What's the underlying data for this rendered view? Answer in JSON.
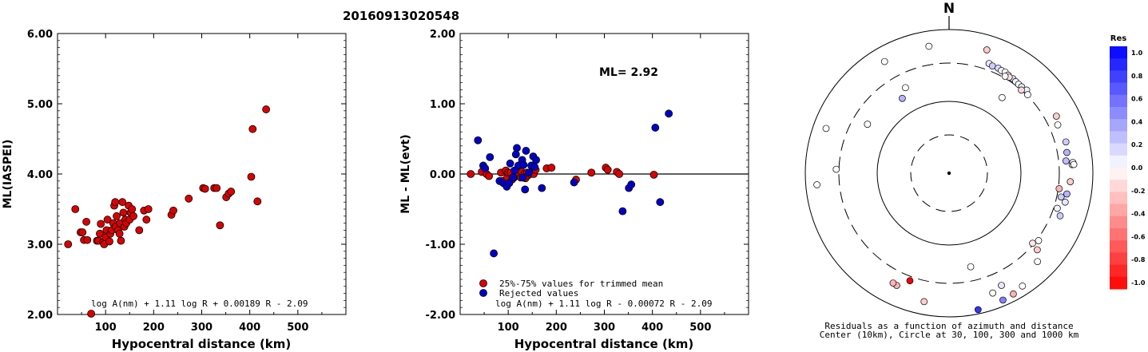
{
  "page_title": "20160913020548",
  "chart_data": [
    {
      "type": "scatter",
      "title": "",
      "xlabel": "Hypocentral distance (km)",
      "ylabel": "ML(IASPEI)",
      "xlim": [
        0,
        600
      ],
      "ylim": [
        2.0,
        6.0
      ],
      "x_ticks": [
        "100",
        "200",
        "300",
        "400",
        "500"
      ],
      "y_ticks": [
        "2.00",
        "3.00",
        "4.00",
        "5.00",
        "6.00"
      ],
      "formula": "log A(nm) + 1.11 log R + 0.00189 R - 2.09",
      "series": [
        {
          "color": "#dd0000",
          "points": [
            [
              22,
              3.0
            ],
            [
              37,
              3.5
            ],
            [
              48,
              3.17
            ],
            [
              52,
              3.17
            ],
            [
              55,
              3.06
            ],
            [
              60,
              3.32
            ],
            [
              62,
              3.06
            ],
            [
              70,
              1.97
            ],
            [
              82,
              3.05
            ],
            [
              85,
              3.05
            ],
            [
              88,
              3.15
            ],
            [
              90,
              3.29
            ],
            [
              95,
              3.03
            ],
            [
              97,
              3.0
            ],
            [
              100,
              3.1
            ],
            [
              102,
              3.2
            ],
            [
              104,
              3.35
            ],
            [
              108,
              3.04
            ],
            [
              110,
              3.15
            ],
            [
              113,
              3.2
            ],
            [
              116,
              3.3
            ],
            [
              118,
              3.55
            ],
            [
              120,
              3.6
            ],
            [
              121,
              3.25
            ],
            [
              123,
              3.4
            ],
            [
              126,
              3.2
            ],
            [
              129,
              3.15
            ],
            [
              130,
              3.3
            ],
            [
              132,
              3.05
            ],
            [
              135,
              3.6
            ],
            [
              137,
              3.45
            ],
            [
              139,
              3.25
            ],
            [
              141,
              3.35
            ],
            [
              143,
              3.3
            ],
            [
              148,
              3.55
            ],
            [
              150,
              3.35
            ],
            [
              152,
              3.45
            ],
            [
              155,
              3.5
            ],
            [
              158,
              3.4
            ],
            [
              170,
              3.2
            ],
            [
              180,
              3.48
            ],
            [
              185,
              3.35
            ],
            [
              189,
              3.5
            ],
            [
              237,
              3.42
            ],
            [
              241,
              3.48
            ],
            [
              273,
              3.65
            ],
            [
              303,
              3.8
            ],
            [
              307,
              3.79
            ],
            [
              326,
              3.8
            ],
            [
              331,
              3.8
            ],
            [
              338,
              3.27
            ],
            [
              351,
              3.67
            ],
            [
              356,
              3.72
            ],
            [
              361,
              3.75
            ],
            [
              403,
              3.96
            ],
            [
              406,
              4.64
            ],
            [
              416,
              3.61
            ],
            [
              434,
              4.92
            ]
          ]
        }
      ]
    },
    {
      "type": "scatter",
      "title": "",
      "xlabel": "Hypocentral distance (km)",
      "ylabel": "ML - ML(evt)",
      "xlim": [
        0,
        600
      ],
      "ylim": [
        -2.0,
        2.0
      ],
      "x_ticks": [
        "100",
        "200",
        "300",
        "400",
        "500"
      ],
      "y_ticks": [
        "-2.00",
        "-1.00",
        "0.00",
        "1.00",
        "2.00"
      ],
      "annotation": "ML= 2.92",
      "formula": "log A(nm) + 1.11 log R - 0.00072 R - 2.09",
      "series": [
        {
          "name": "25%-75% values for trimmed mean",
          "color": "#dd0000",
          "points": [
            [
              22,
              0.0
            ],
            [
              45,
              0.03
            ],
            [
              55,
              0.0
            ],
            [
              60,
              -0.03
            ],
            [
              85,
              0.02
            ],
            [
              88,
              -0.1
            ],
            [
              95,
              0.05
            ],
            [
              98,
              -0.05
            ],
            [
              100,
              0.02
            ],
            [
              105,
              0.02
            ],
            [
              108,
              -0.08
            ],
            [
              112,
              -0.05
            ],
            [
              115,
              0.0
            ],
            [
              118,
              0.06
            ],
            [
              120,
              -0.02
            ],
            [
              123,
              0.0
            ],
            [
              126,
              -0.05
            ],
            [
              128,
              0.03
            ],
            [
              131,
              -0.05
            ],
            [
              134,
              0.0
            ],
            [
              136,
              -0.06
            ],
            [
              139,
              0.02
            ],
            [
              141,
              -0.02
            ],
            [
              146,
              0.0
            ],
            [
              150,
              0.05
            ],
            [
              153,
              0.0
            ],
            [
              157,
              0.06
            ],
            [
              180,
              0.08
            ],
            [
              190,
              0.09
            ],
            [
              241,
              -0.08
            ],
            [
              273,
              0.02
            ],
            [
              303,
              0.09
            ],
            [
              307,
              0.06
            ],
            [
              326,
              0.03
            ],
            [
              331,
              0.0
            ],
            [
              403,
              -0.01
            ]
          ]
        },
        {
          "name": "Rejected values",
          "color": "#0000cc",
          "points": [
            [
              37,
              0.48
            ],
            [
              48,
              0.12
            ],
            [
              52,
              0.08
            ],
            [
              62,
              0.24
            ],
            [
              70,
              -1.13
            ],
            [
              82,
              -0.1
            ],
            [
              90,
              -0.13
            ],
            [
              97,
              -0.18
            ],
            [
              102,
              -0.13
            ],
            [
              104,
              0.15
            ],
            [
              110,
              -0.05
            ],
            [
              113,
              0.05
            ],
            [
              116,
              0.28
            ],
            [
              118,
              0.37
            ],
            [
              121,
              0.12
            ],
            [
              129,
              0.2
            ],
            [
              130,
              -0.05
            ],
            [
              132,
              0.13
            ],
            [
              135,
              -0.22
            ],
            [
              137,
              0.33
            ],
            [
              143,
              0.02
            ],
            [
              148,
              0.12
            ],
            [
              152,
              0.25
            ],
            [
              155,
              0.1
            ],
            [
              158,
              0.2
            ],
            [
              170,
              -0.2
            ],
            [
              237,
              -0.12
            ],
            [
              338,
              -0.53
            ],
            [
              351,
              -0.2
            ],
            [
              356,
              -0.15
            ],
            [
              406,
              0.66
            ],
            [
              416,
              -0.4
            ],
            [
              434,
              0.86
            ]
          ]
        }
      ]
    },
    {
      "type": "scatter",
      "title": "N",
      "caption_line1": "Residuals as a function of azimuth and distance",
      "caption_line2": "Center (10km), Circle at 30, 100, 300 and 1000 km",
      "colorbar_title": "Res",
      "colorbar_ticks": [
        "1.0",
        "0.8",
        "0.6",
        "0.4",
        "0.2",
        "0.0",
        "-0.2",
        "-0.4",
        "-0.6",
        "-0.8",
        "-1.0"
      ],
      "rings_km": [
        30,
        100,
        300,
        1000
      ],
      "points_az_dist_res": [
        [
          330,
          590,
          0.0
        ],
        [
          351,
          580,
          0.0
        ],
        [
          17,
          590,
          -0.2
        ],
        [
          20,
          380,
          0.1
        ],
        [
          22,
          365,
          0.2
        ],
        [
          25,
          370,
          0.15
        ],
        [
          27,
          360,
          0.05
        ],
        [
          29,
          365,
          0.0
        ],
        [
          31,
          350,
          0.1
        ],
        [
          34,
          345,
          0.15
        ],
        [
          32,
          335,
          -0.1
        ],
        [
          30,
          320,
          0.0
        ],
        [
          36,
          335,
          0.05
        ],
        [
          38,
          330,
          0.0
        ],
        [
          40,
          330,
          0.1
        ],
        [
          43,
          340,
          0.05
        ],
        [
          45,
          310,
          0.0
        ],
        [
          41,
          300,
          -0.15
        ],
        [
          333,
          200,
          0.0
        ],
        [
          328,
          160,
          0.3
        ],
        [
          301,
          195,
          0.0
        ],
        [
          35,
          180,
          0.0
        ],
        [
          62,
          450,
          -0.2
        ],
        [
          66,
          410,
          0.0
        ],
        [
          75,
          440,
          0.2
        ],
        [
          80,
          420,
          0.3
        ],
        [
          84,
          390,
          0.25
        ],
        [
          98,
          310,
          -0.3
        ],
        [
          100,
          420,
          0.3
        ],
        [
          104,
          420,
          0.1
        ],
        [
          102,
          350,
          0.2
        ],
        [
          108,
          340,
          0.05
        ],
        [
          111,
          410,
          0.2
        ],
        [
          86,
          480,
          -0.1
        ],
        [
          85,
          495,
          0.1
        ],
        [
          86,
          510,
          0.0
        ],
        [
          94,
          450,
          -0.2
        ],
        [
          130,
          290,
          -0.1
        ],
        [
          127,
          320,
          0.0
        ],
        [
          131,
          380,
          -0.2
        ],
        [
          135,
          510,
          0.0
        ],
        [
          167,
          200,
          0.0
        ],
        [
          200,
          350,
          -1.0
        ],
        [
          205,
          490,
          -0.3
        ],
        [
          207,
          480,
          -0.3
        ],
        [
          155,
          490,
          0.1
        ],
        [
          160,
          560,
          0.0
        ],
        [
          191,
          630,
          -0.2
        ],
        [
          147,
          720,
          0.0
        ],
        [
          152,
          780,
          -0.3
        ],
        [
          157,
          810,
          0.5
        ],
        [
          168,
          860,
          0.8
        ],
        [
          272,
          330,
          0.0
        ],
        [
          290,
          630,
          0.0
        ],
        [
          265,
          670,
          0.0
        ]
      ]
    }
  ]
}
